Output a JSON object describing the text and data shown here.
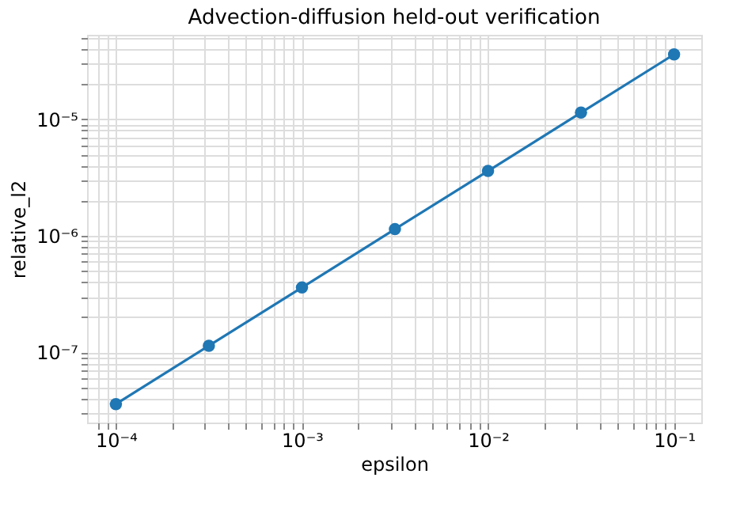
{
  "chart_data": {
    "type": "line",
    "title": "Advection-diffusion held-out verification",
    "xlabel": "epsilon",
    "ylabel": "relative_l2",
    "x": [
      0.0001,
      0.000316,
      0.001,
      0.00316,
      0.01,
      0.0316,
      0.1
    ],
    "series": [
      {
        "color": "#1f77b4",
        "values": [
          3.6e-08,
          1.14e-07,
          3.6e-07,
          1.14e-06,
          3.6e-06,
          1.14e-05,
          3.6e-05
        ]
      }
    ],
    "log": "xy",
    "marker": "circle",
    "line_style": "solid",
    "grid": true,
    "xlim": [
      7e-05,
      0.14
    ],
    "ylim": [
      2.5e-08,
      5.3e-05
    ],
    "xticks": [
      {
        "value": 8e-05,
        "label": null
      },
      {
        "value": 9e-05,
        "label": null
      },
      {
        "value": 0.0001,
        "label": "10⁻⁴"
      },
      {
        "value": 0.0002,
        "label": null
      },
      {
        "value": 0.0003,
        "label": null
      },
      {
        "value": 0.0004,
        "label": null
      },
      {
        "value": 0.0005,
        "label": null
      },
      {
        "value": 0.0006,
        "label": null
      },
      {
        "value": 0.0007,
        "label": null
      },
      {
        "value": 0.0008,
        "label": null
      },
      {
        "value": 0.0009,
        "label": null
      },
      {
        "value": 0.001,
        "label": "10⁻³"
      },
      {
        "value": 0.002,
        "label": null
      },
      {
        "value": 0.003,
        "label": null
      },
      {
        "value": 0.004,
        "label": null
      },
      {
        "value": 0.005,
        "label": null
      },
      {
        "value": 0.006,
        "label": null
      },
      {
        "value": 0.007,
        "label": null
      },
      {
        "value": 0.008,
        "label": null
      },
      {
        "value": 0.009,
        "label": null
      },
      {
        "value": 0.01,
        "label": "10⁻²"
      },
      {
        "value": 0.02,
        "label": null
      },
      {
        "value": 0.03,
        "label": null
      },
      {
        "value": 0.04,
        "label": null
      },
      {
        "value": 0.05,
        "label": null
      },
      {
        "value": 0.06,
        "label": null
      },
      {
        "value": 0.07,
        "label": null
      },
      {
        "value": 0.08,
        "label": null
      },
      {
        "value": 0.09,
        "label": null
      },
      {
        "value": 0.1,
        "label": "10⁻¹"
      }
    ],
    "yticks": [
      {
        "value": 3e-08,
        "label": null
      },
      {
        "value": 4e-08,
        "label": null
      },
      {
        "value": 5e-08,
        "label": null
      },
      {
        "value": 6e-08,
        "label": null
      },
      {
        "value": 7e-08,
        "label": null
      },
      {
        "value": 8e-08,
        "label": null
      },
      {
        "value": 9e-08,
        "label": null
      },
      {
        "value": 1e-07,
        "label": "10⁻⁷"
      },
      {
        "value": 2e-07,
        "label": null
      },
      {
        "value": 3e-07,
        "label": null
      },
      {
        "value": 4e-07,
        "label": null
      },
      {
        "value": 5e-07,
        "label": null
      },
      {
        "value": 6e-07,
        "label": null
      },
      {
        "value": 7e-07,
        "label": null
      },
      {
        "value": 8e-07,
        "label": null
      },
      {
        "value": 9e-07,
        "label": null
      },
      {
        "value": 1e-06,
        "label": "10⁻⁶"
      },
      {
        "value": 2e-06,
        "label": null
      },
      {
        "value": 3e-06,
        "label": null
      },
      {
        "value": 4e-06,
        "label": null
      },
      {
        "value": 5e-06,
        "label": null
      },
      {
        "value": 6e-06,
        "label": null
      },
      {
        "value": 7e-06,
        "label": null
      },
      {
        "value": 8e-06,
        "label": null
      },
      {
        "value": 9e-06,
        "label": null
      },
      {
        "value": 1e-05,
        "label": "10⁻⁵"
      },
      {
        "value": 2e-05,
        "label": null
      },
      {
        "value": 3e-05,
        "label": null
      },
      {
        "value": 4e-05,
        "label": null
      },
      {
        "value": 5e-05,
        "label": null
      }
    ]
  }
}
